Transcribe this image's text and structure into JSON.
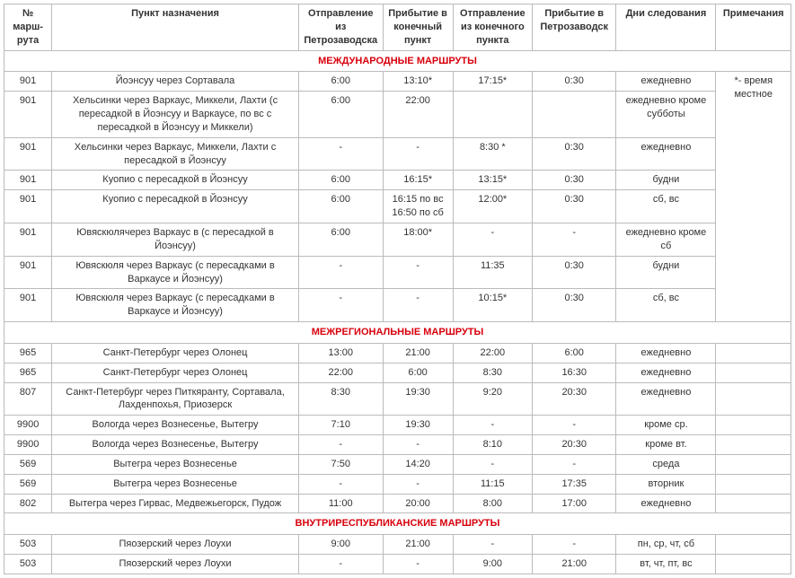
{
  "headers": {
    "route": "№ марш-\nрута",
    "dest": "Пункт назначения",
    "dep1": "Отправление из Петрозаводска",
    "arr1": "Прибытие в конечный пункт",
    "dep2": "Отправление из конечного пункта",
    "arr2": "Прибытие в Петрозаводск",
    "days": "Дни следования",
    "note": "Примечания"
  },
  "sections": {
    "intl": "МЕЖДУНАРОДНЫЕ МАРШРУТЫ",
    "interreg": "МЕЖРЕГИОНАЛЬНЫЕ МАРШРУТЫ",
    "intra": "ВНУТРИРЕСПУБЛИКАНСКИЕ МАРШРУТЫ"
  },
  "note_star": "*- время местное",
  "r": {
    "i1": {
      "route": "901",
      "dest": "Йоэнсуу через Сортавала",
      "dep1": "6:00",
      "arr1": "13:10*",
      "dep2": "17:15*",
      "arr2": "0:30",
      "days": "ежедневно"
    },
    "i2": {
      "route": "901",
      "dest": "Хельсинки через Варкаус, Миккели, Лахти (с пересадкой в Йоэнсуу и Варкаусе, по вс с пересадкой в Йоэнсуу и Миккели)",
      "dep1": "6:00",
      "arr1": "22:00",
      "dep2": "",
      "arr2": "",
      "days": "ежедневно кроме субботы"
    },
    "i3": {
      "route": "901",
      "dest": "Хельсинки через Варкаус, Миккели, Лахти с пересадкой в Йоэнсуу",
      "dep1": "-",
      "arr1": "-",
      "dep2": "8:30 *",
      "arr2": "0:30",
      "days": "ежедневно"
    },
    "i4": {
      "route": "901",
      "dest": "Куопио с пересадкой в Йоэнсуу",
      "dep1": "6:00",
      "arr1": "16:15*",
      "dep2": "13:15*",
      "arr2": "0:30",
      "days": "будни"
    },
    "i5": {
      "route": "901",
      "dest": "Куопио с пересадкой в Йоэнсуу",
      "dep1": "6:00",
      "arr1": "16:15 по вс 16:50 по сб",
      "dep2": "12:00*",
      "arr2": "0:30",
      "days": "сб, вс"
    },
    "i6": {
      "route": "901",
      "dest": "Ювяскюлячерез Варкаус в (с пересадкой в Йоэнсуу)",
      "dep1": "6:00",
      "arr1": "18:00*",
      "dep2": "-",
      "arr2": "-",
      "days": "ежедневно кроме сб"
    },
    "i7": {
      "route": "901",
      "dest": "Ювяскюля через Варкаус (с пересадками в Варкаусе и Йоэнсуу)",
      "dep1": "-",
      "arr1": "-",
      "dep2": "11:35",
      "arr2": "0:30",
      "days": "будни"
    },
    "i8": {
      "route": "901",
      "dest": "Ювяскюля через Варкаус (с пересадками в Варкаусе и Йоэнсуу)",
      "dep1": "-",
      "arr1": "-",
      "dep2": "10:15*",
      "arr2": "0:30",
      "days": "сб, вс"
    },
    "m1": {
      "route": "965",
      "dest": "Санкт-Петербург через Олонец",
      "dep1": "13:00",
      "arr1": "21:00",
      "dep2": "22:00",
      "arr2": "6:00",
      "days": "ежедневно"
    },
    "m2": {
      "route": "965",
      "dest": "Санкт-Петербург через Олонец",
      "dep1": "22:00",
      "arr1": "6:00",
      "dep2": "8:30",
      "arr2": "16:30",
      "days": "ежедневно"
    },
    "m3": {
      "route": "807",
      "dest": "Санкт-Петербург через Питкяранту, Сортавала, Лахденпохья, Приозерск",
      "dep1": "8:30",
      "arr1": "19:30",
      "dep2": "9:20",
      "arr2": "20:30",
      "days": "ежедневно"
    },
    "m4": {
      "route": "9900",
      "dest": "Вологда через Вознесенье, Вытегру",
      "dep1": "7:10",
      "arr1": "19:30",
      "dep2": "-",
      "arr2": "-",
      "days": "кроме ср."
    },
    "m5": {
      "route": "9900",
      "dest": "Вологда через Вознесенье, Вытегру",
      "dep1": "-",
      "arr1": "-",
      "dep2": "8:10",
      "arr2": "20:30",
      "days": "кроме вт."
    },
    "m6": {
      "route": "569",
      "dest": "Вытегра через Вознесенье",
      "dep1": "7:50",
      "arr1": "14:20",
      "dep2": "-",
      "arr2": "-",
      "days": "среда"
    },
    "m7": {
      "route": "569",
      "dest": "Вытегра через Вознесенье",
      "dep1": "-",
      "arr1": "-",
      "dep2": "11:15",
      "arr2": "17:35",
      "days": "вторник"
    },
    "m8": {
      "route": "802",
      "dest": "Вытегра через Гирвас, Медвежьегорск, Пудож",
      "dep1": "11:00",
      "arr1": "20:00",
      "dep2": "8:00",
      "arr2": "17:00",
      "days": "ежедневно"
    },
    "v1": {
      "route": "503",
      "dest": "Пяозерский через Лоухи",
      "dep1": "9:00",
      "arr1": "21:00",
      "dep2": "-",
      "arr2": "-",
      "days": "пн, ср, чт, сб"
    },
    "v2": {
      "route": "503",
      "dest": "Пяозерский через Лоухи",
      "dep1": "-",
      "arr1": "-",
      "dep2": "9:00",
      "arr2": "21:00",
      "days": "вт, чт, пт, вс"
    }
  }
}
